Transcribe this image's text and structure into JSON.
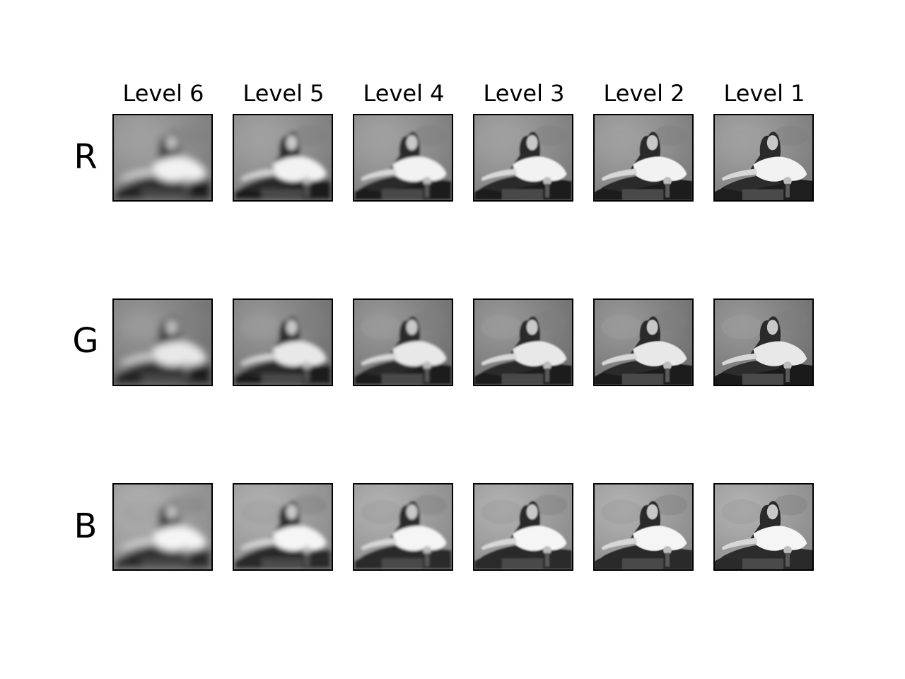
{
  "columns": [
    "Level 6",
    "Level 5",
    "Level 4",
    "Level 3",
    "Level 2",
    "Level 1"
  ],
  "rows": [
    "R",
    "G",
    "B"
  ],
  "panel_blur_levels": [
    6,
    5,
    4,
    3,
    2,
    1
  ]
}
